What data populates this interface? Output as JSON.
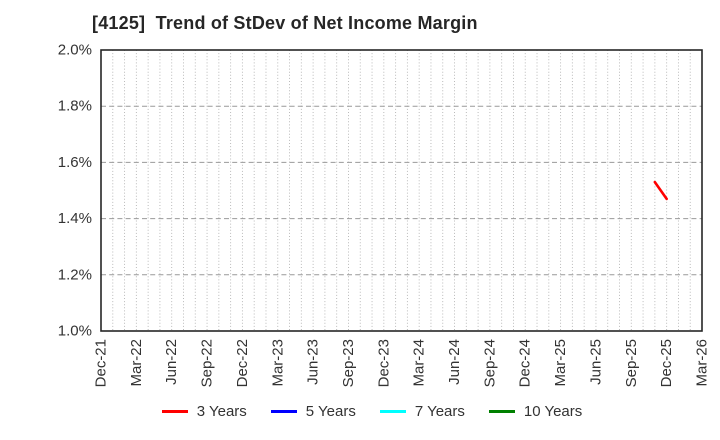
{
  "chart_data": {
    "type": "line",
    "title": "[4125]  Trend of StDev of Net Income Margin",
    "x_tick_labels": [
      "Dec-21",
      "Mar-22",
      "Jun-22",
      "Sep-22",
      "Dec-22",
      "Mar-23",
      "Jun-23",
      "Sep-23",
      "Dec-23",
      "Mar-24",
      "Jun-24",
      "Sep-24",
      "Dec-24",
      "Mar-25",
      "Jun-25",
      "Sep-25",
      "Dec-25",
      "Mar-26"
    ],
    "x_months_per_tick": 3,
    "x_minor_grid": "monthly-dotted",
    "ylim": [
      1.0,
      2.0
    ],
    "y_ticks": [
      {
        "value": 2.0,
        "label": "2.0%"
      },
      {
        "value": 1.8,
        "label": "1.8%"
      },
      {
        "value": 1.6,
        "label": "1.6%"
      },
      {
        "value": 1.4,
        "label": "1.4%"
      },
      {
        "value": 1.2,
        "label": "1.2%"
      },
      {
        "value": 1.0,
        "label": "1.0%"
      }
    ],
    "grid": true,
    "legend_position": "bottom",
    "series": [
      {
        "name": "3 Years",
        "color": "#ff0000",
        "points": [
          {
            "date": "Nov-25",
            "month_index": 47,
            "value": 1.53
          },
          {
            "date": "Dec-25",
            "month_index": 48,
            "value": 1.47
          }
        ]
      },
      {
        "name": "5 Years",
        "color": "#0000ff",
        "points": []
      },
      {
        "name": "7 Years",
        "color": "#00ffff",
        "points": []
      },
      {
        "name": "10 Years",
        "color": "#008000",
        "points": []
      }
    ],
    "style": {
      "background": "#ffffff",
      "frame": "#262626",
      "grid_minor": "#b3b3b3",
      "grid_major": "#999999",
      "text": "#333333"
    }
  }
}
